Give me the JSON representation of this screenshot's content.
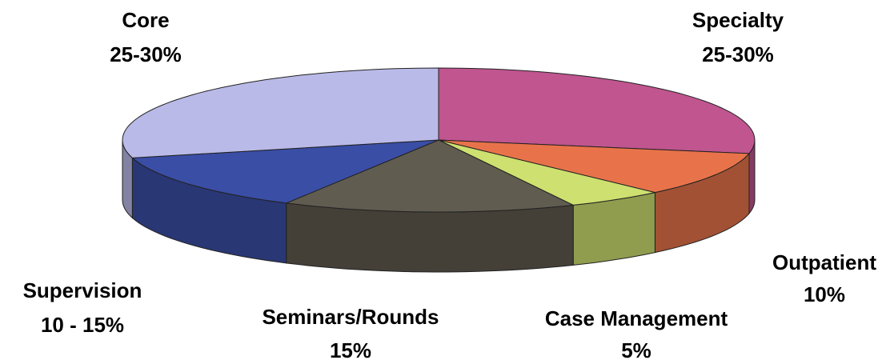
{
  "chart_data": {
    "type": "pie3d",
    "categories": [
      "Specialty",
      "Outpatient",
      "Case Management",
      "Seminars/Rounds",
      "Supervision",
      "Core"
    ],
    "values": [
      28,
      10,
      5,
      15,
      13,
      29
    ],
    "value_labels": [
      "25-30%",
      "10%",
      "5%",
      "15%",
      "10 - 15%",
      "25-30%"
    ],
    "colors": [
      "#c0558f",
      "#e8734a",
      "#cde070",
      "#615c50",
      "#3a4ea6",
      "#babae9"
    ]
  }
}
